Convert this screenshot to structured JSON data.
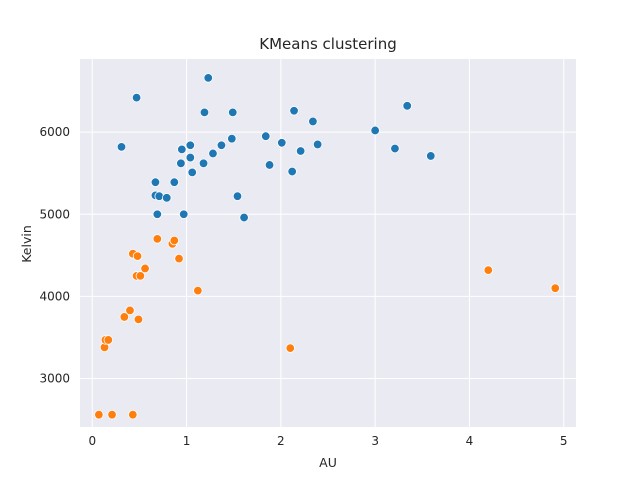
{
  "chart_data": {
    "type": "scatter",
    "title": "KMeans clustering",
    "xlabel": "AU",
    "ylabel": "Kelvin",
    "xlim": [
      -0.13,
      5.13
    ],
    "ylim": [
      2410,
      6890
    ],
    "xticks": [
      0,
      1,
      2,
      3,
      4,
      5
    ],
    "yticks": [
      3000,
      4000,
      5000,
      6000
    ],
    "grid": true,
    "legend": "none",
    "background": "#eaeaf2",
    "series": [
      {
        "color": "#1f77b4",
        "points": [
          [
            0.31,
            5820
          ],
          [
            0.47,
            6420
          ],
          [
            0.67,
            5390
          ],
          [
            0.67,
            5230
          ],
          [
            0.69,
            5000
          ],
          [
            0.71,
            5220
          ],
          [
            0.79,
            5200
          ],
          [
            0.87,
            5390
          ],
          [
            0.94,
            5620
          ],
          [
            0.95,
            5790
          ],
          [
            0.97,
            5000
          ],
          [
            1.04,
            5840
          ],
          [
            1.04,
            5690
          ],
          [
            1.06,
            5510
          ],
          [
            1.18,
            5620
          ],
          [
            1.19,
            6240
          ],
          [
            1.23,
            6660
          ],
          [
            1.28,
            5740
          ],
          [
            1.37,
            5840
          ],
          [
            1.48,
            5920
          ],
          [
            1.49,
            6240
          ],
          [
            1.54,
            5220
          ],
          [
            1.61,
            4960
          ],
          [
            1.84,
            5950
          ],
          [
            1.88,
            5600
          ],
          [
            2.01,
            5870
          ],
          [
            2.12,
            5520
          ],
          [
            2.14,
            6260
          ],
          [
            2.21,
            5770
          ],
          [
            2.34,
            6130
          ],
          [
            2.39,
            5850
          ],
          [
            3.0,
            6020
          ],
          [
            3.21,
            5800
          ],
          [
            3.34,
            6320
          ],
          [
            3.59,
            5710
          ]
        ]
      },
      {
        "color": "#ff7f0e",
        "points": [
          [
            0.07,
            2560
          ],
          [
            0.13,
            3380
          ],
          [
            0.14,
            3470
          ],
          [
            0.17,
            3470
          ],
          [
            0.21,
            2560
          ],
          [
            0.34,
            3750
          ],
          [
            0.4,
            3830
          ],
          [
            0.43,
            4520
          ],
          [
            0.43,
            2560
          ],
          [
            0.47,
            4250
          ],
          [
            0.48,
            4490
          ],
          [
            0.49,
            3720
          ],
          [
            0.51,
            4250
          ],
          [
            0.56,
            4340
          ],
          [
            0.69,
            4700
          ],
          [
            0.85,
            4640
          ],
          [
            0.87,
            4680
          ],
          [
            0.92,
            4460
          ],
          [
            1.12,
            4070
          ],
          [
            2.1,
            3370
          ],
          [
            4.2,
            4320
          ],
          [
            4.91,
            4100
          ]
        ]
      }
    ]
  }
}
